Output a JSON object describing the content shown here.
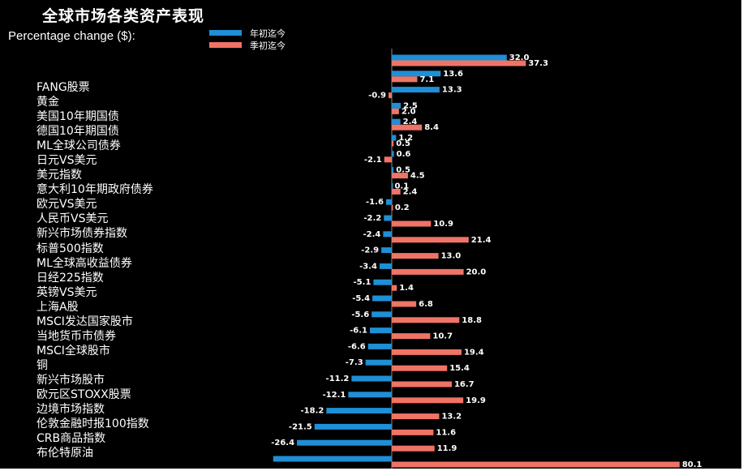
{
  "chart_data": {
    "type": "bar",
    "orientation": "horizontal",
    "title": "全球市场各类资产表现",
    "subtitle": "Percentage change ($):",
    "categories": [
      "FANG股票",
      "黄金",
      "美国10年期国债",
      "德国10年期国债",
      "ML全球公司债券",
      "日元VS美元",
      "美元指数",
      "意大利10年期政府债券",
      "欧元VS美元",
      "人民币VS美元",
      "新兴市场债券指数",
      "标普500指数",
      "ML全球高收益债券",
      "日经225指数",
      "英镑VS美元",
      "上海A股",
      "MSCI发达国家股市",
      "当地货币市债券",
      "MSCI全球股市",
      "铜",
      "新兴市场股市",
      "欧元区STOXX股票",
      "边境市场指数",
      "伦敦金融时报100指数",
      "CRB商品指数",
      "布伦特原油"
    ],
    "series": [
      {
        "name": "年初迄今",
        "color": "#1f8fd6",
        "values": [
          32.0,
          13.6,
          13.3,
          2.5,
          2.4,
          1.2,
          0.6,
          0.5,
          0.1,
          -1.6,
          -2.2,
          -2.4,
          -2.9,
          -3.4,
          -5.1,
          -5.4,
          -5.6,
          -6.1,
          -6.6,
          -7.3,
          -11.2,
          -12.1,
          -18.2,
          -21.5,
          -26.4,
          -33.0
        ],
        "labels": [
          "32.0",
          "13.6",
          "13.3",
          "2.5",
          "2.4",
          "1.2",
          "0.6",
          "0.5",
          "0.1",
          "-1.6",
          "-2.2",
          "-2.4",
          "-2.9",
          "-3.4",
          "-5.1",
          "-5.4",
          "-5.6",
          "-6.1",
          "-6.6",
          "-7.3",
          "-11.2",
          "-12.1",
          "-18.2",
          "-21.5",
          "-26.4",
          ""
        ]
      },
      {
        "name": "季初迄今",
        "color": "#f07466",
        "values": [
          37.3,
          7.1,
          -0.9,
          2.0,
          8.4,
          0.5,
          -2.1,
          4.5,
          2.4,
          0.2,
          10.9,
          21.4,
          13.0,
          20.0,
          1.4,
          6.8,
          18.8,
          10.7,
          19.4,
          15.4,
          16.7,
          19.9,
          13.2,
          11.6,
          11.9,
          80.1
        ],
        "labels": [
          "37.3",
          "7.1",
          "-0.9",
          "2.0",
          "8.4",
          "0.5",
          "-2.1",
          "4.5",
          "2.4",
          "0.2",
          "10.9",
          "21.4",
          "13.0",
          "20.0",
          "1.4",
          "6.8",
          "18.8",
          "10.7",
          "19.4",
          "15.4",
          "16.7",
          "19.9",
          "13.2",
          "11.6",
          "11.9",
          "80.1"
        ]
      }
    ],
    "xlim": [
      -40,
      85
    ],
    "grid": false,
    "legend_position": "top"
  }
}
